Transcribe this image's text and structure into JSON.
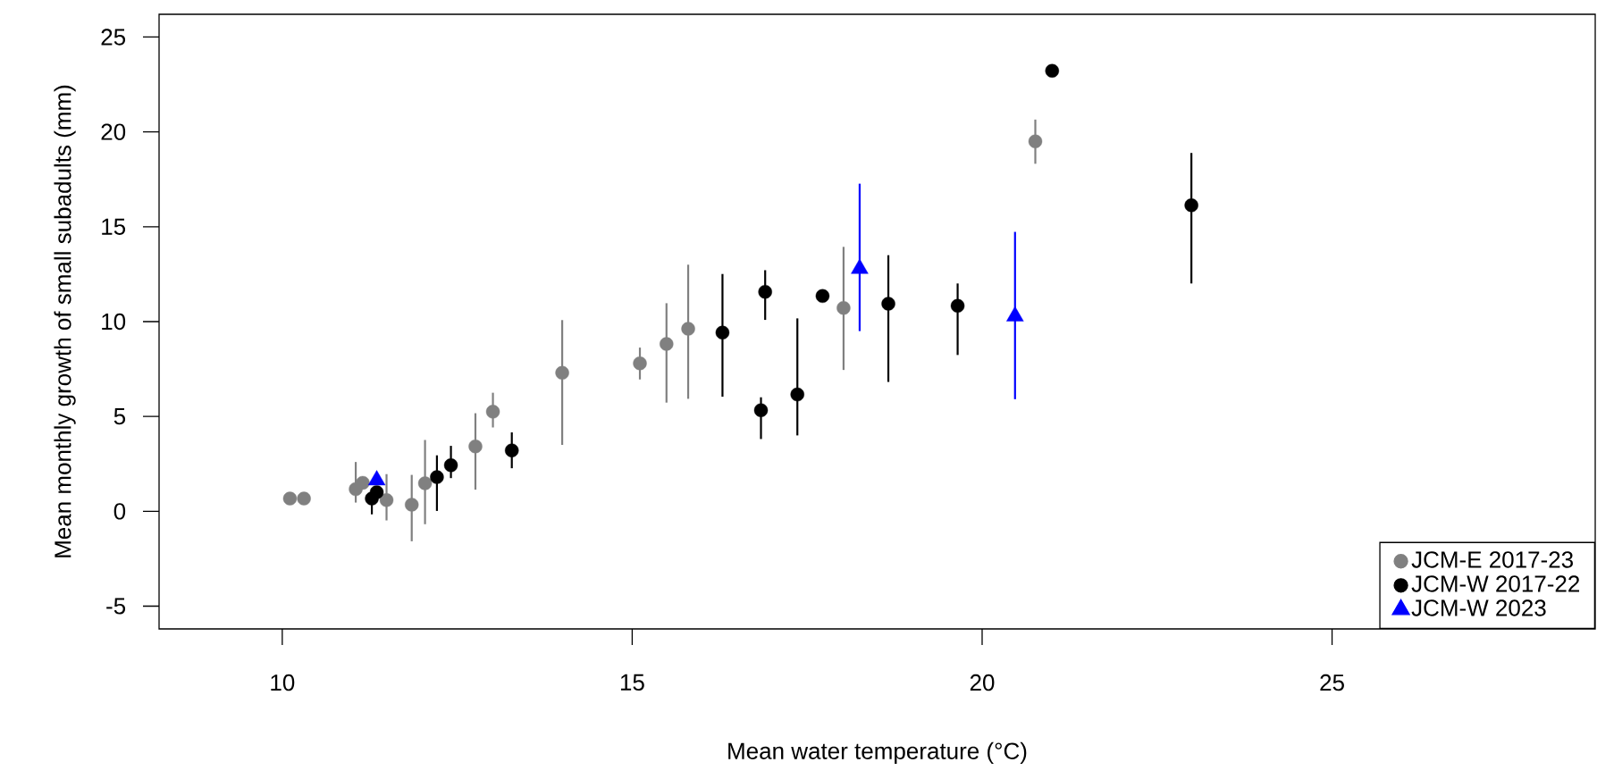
{
  "chart_data": {
    "type": "scatter",
    "xlabel": "Mean water temperature (°C)",
    "ylabel": "Mean monthly growth of small subadults (mm)",
    "xlim": [
      8.24,
      28.76
    ],
    "ylim": [
      -6.2,
      26.2
    ],
    "xticks": [
      10,
      15,
      20,
      25
    ],
    "yticks": [
      -5,
      0,
      5,
      10,
      15,
      20,
      25
    ],
    "grid": false,
    "legend": "bottom right",
    "series": [
      {
        "name": "JCM-E 2017-23",
        "color": "#808080",
        "marker": "circle",
        "x": [
          10.11,
          10.31,
          11.05,
          11.15,
          11.49,
          11.85,
          12.04,
          12.76,
          13.01,
          14.0,
          15.11,
          15.49,
          15.8,
          18.02,
          20.76
        ],
        "values": [
          0.67,
          0.67,
          1.17,
          1.5,
          0.59,
          0.35,
          1.48,
          3.42,
          5.25,
          7.3,
          7.8,
          8.82,
          9.62,
          10.72,
          19.5
        ],
        "errors": [
          null,
          null,
          [
            0.46,
            2.6
          ],
          null,
          [
            -0.48,
            1.96
          ],
          [
            -1.58,
            1.92
          ],
          [
            -0.68,
            3.76
          ],
          [
            1.14,
            5.17
          ],
          [
            4.42,
            6.25
          ],
          [
            3.5,
            10.08
          ],
          [
            6.95,
            8.63
          ],
          [
            5.73,
            10.97
          ],
          [
            5.93,
            13.0
          ],
          [
            7.45,
            13.94
          ],
          [
            18.32,
            20.65
          ]
        ]
      },
      {
        "name": "JCM-W 2017-22",
        "color": "#000000",
        "marker": "circle",
        "x": [
          11.28,
          11.35,
          12.21,
          12.41,
          13.28,
          16.29,
          16.84,
          16.9,
          17.36,
          17.72,
          18.66,
          19.65,
          21.0,
          22.99
        ],
        "values": [
          0.67,
          1.01,
          1.8,
          2.43,
          3.21,
          9.42,
          5.33,
          11.57,
          6.16,
          11.35,
          10.94,
          10.83,
          23.22,
          16.13
        ],
        "errors": [
          [
            -0.16,
            1.2
          ],
          null,
          [
            0.02,
            2.95
          ],
          [
            1.75,
            3.45
          ],
          [
            2.27,
            4.16
          ],
          [
            6.04,
            12.51
          ],
          [
            3.81,
            6.01
          ],
          [
            10.09,
            12.71
          ],
          [
            4.0,
            10.17
          ],
          null,
          [
            6.82,
            13.5
          ],
          [
            8.24,
            12.01
          ],
          null,
          [
            12.01,
            18.89
          ]
        ]
      },
      {
        "name": "JCM-W 2023",
        "color": "#0000ff",
        "marker": "triangle",
        "x": [
          11.35,
          18.25,
          20.47
        ],
        "values": [
          1.64,
          12.79,
          10.28
        ],
        "errors": [
          null,
          [
            9.5,
            17.27
          ],
          [
            5.91,
            14.73
          ]
        ]
      }
    ]
  }
}
